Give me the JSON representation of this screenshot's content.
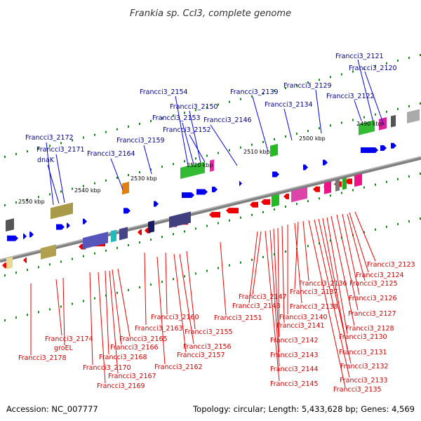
{
  "title": "Frankia sp. CcI3, complete genome",
  "footer": {
    "accession": "Accession: NC_007777",
    "topology": "Topology: circular; Length: 5,433,628 bp; Genes: 4,569"
  },
  "colors": {
    "backbone": "#7f7f7f",
    "top_label": "#00008b",
    "bottom_label": "#cc0000",
    "forward_gene": "#0000ee",
    "reverse_gene": "#ee0000",
    "tick": "#118811"
  },
  "kbp_ticks": [
    "2490 kbp",
    "2500 kbp",
    "2510 kbp",
    "2520 kbp",
    "2530 kbp",
    "2540 kbp",
    "2550 kbp"
  ],
  "top_labels": [
    "Francci3_2121",
    "Francci3_2120",
    "Francci3_2129",
    "Francci3_2122",
    "Francci3_2154",
    "Francci3_2139",
    "Francci3_2134",
    "Francci3_2150",
    "Francci3_2153",
    "Francci3_2146",
    "Francci3_2152",
    "Francci3_2172",
    "Francci3_2159",
    "Francci3_2171",
    "Francci3_2164",
    "dnaK"
  ],
  "bottom_labels": [
    "Francci3_2123",
    "Francci3_2124",
    "Francci3_2125",
    "Francci3_2136",
    "Francci3_2126",
    "Francci3_2137",
    "Francci3_2147",
    "Francci3_2148",
    "Francci3_2138",
    "Francci3_2127",
    "Francci3_2160",
    "Francci3_2151",
    "Francci3_2140",
    "Francci3_2163",
    "Francci3_2141",
    "Francci3_2128",
    "Francci3_2155",
    "Francci3_2174",
    "Francci3_2165",
    "Francci3_2130",
    "groEL",
    "Francci3_2142",
    "Francci3_2166",
    "Francci3_2156",
    "Francci3_2131",
    "Francci3_2157",
    "Francci3_2143",
    "Francci3_2178",
    "Francci3_2168",
    "Francci3_2162",
    "Francci3_2132",
    "Francci3_2170",
    "Francci3_2144",
    "Francci3_2167",
    "Francci3_2133",
    "Francci3_2169",
    "Francci3_2145",
    "Francci3_2135"
  ]
}
